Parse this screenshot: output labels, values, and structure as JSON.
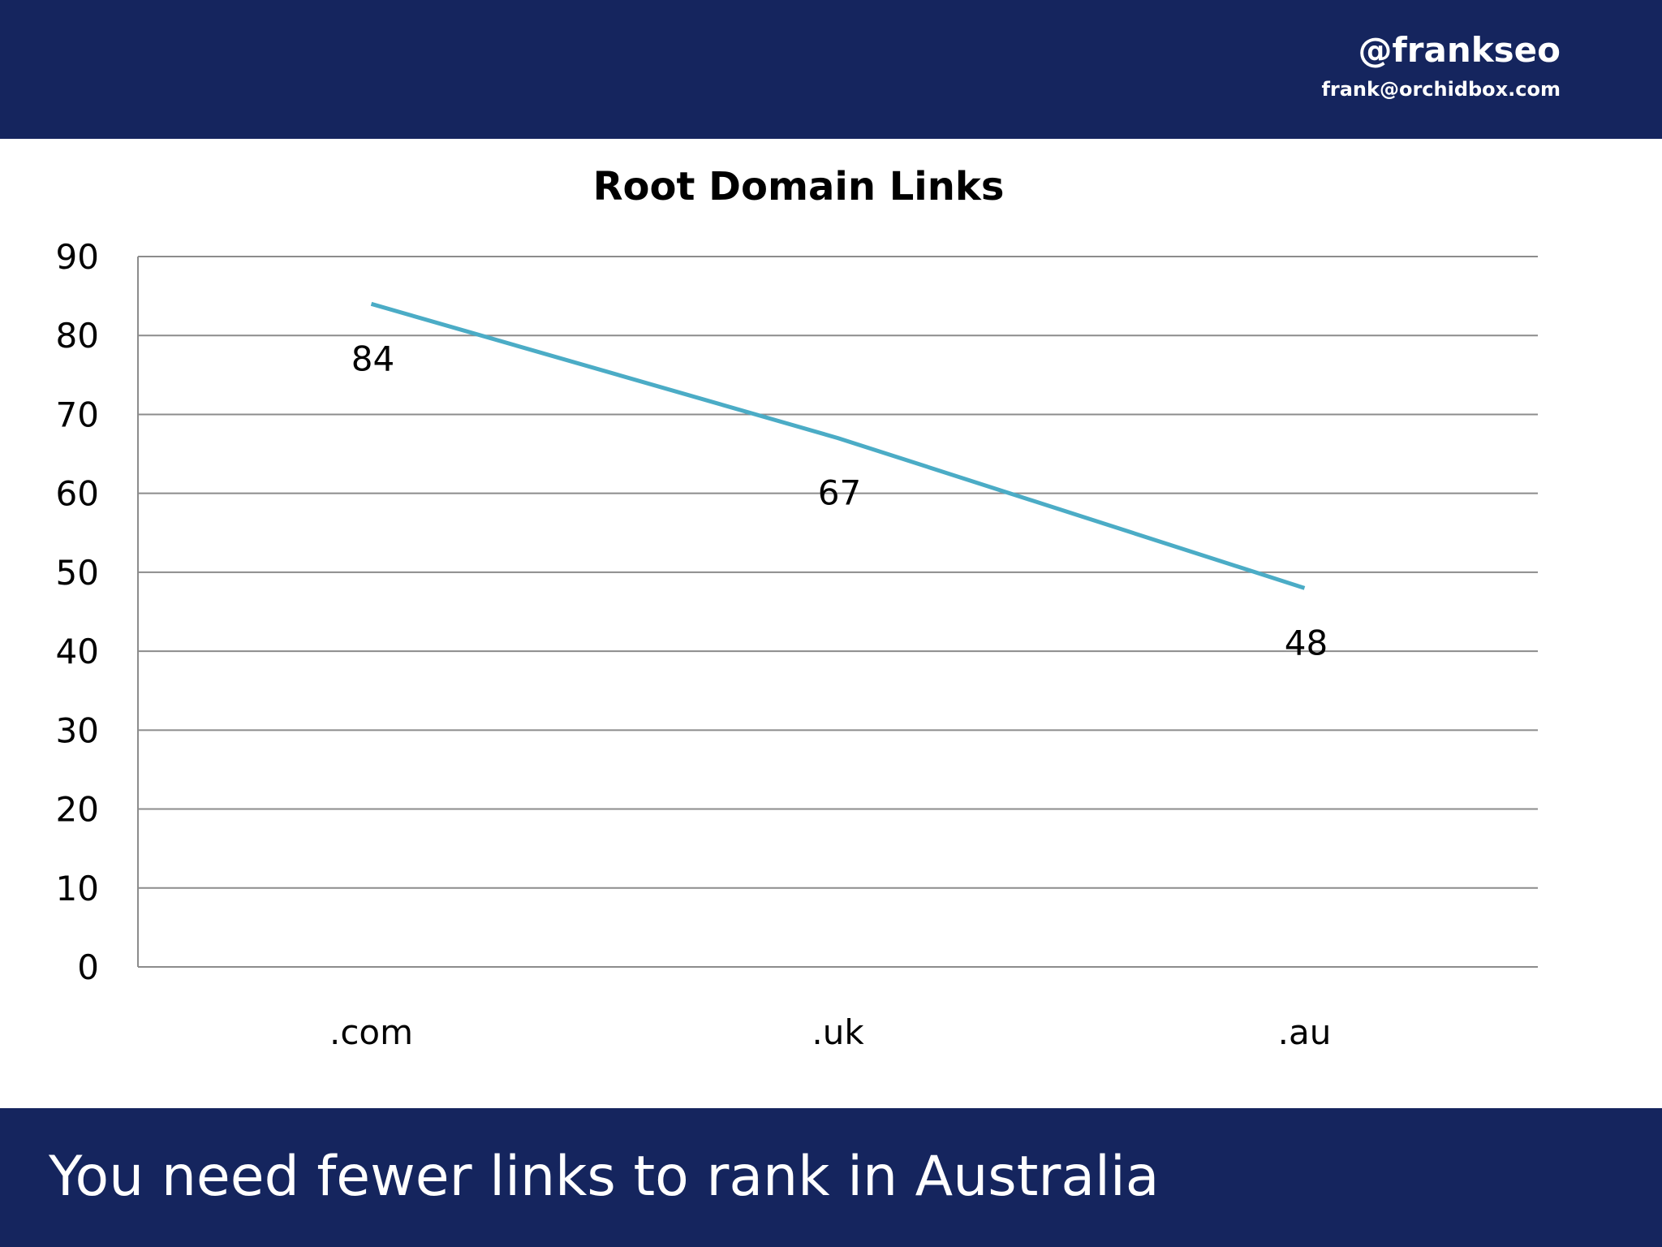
{
  "header": {
    "handle": "@frankseo",
    "email": "frank@orchidbox.com"
  },
  "footer": {
    "text": "You need fewer links to rank in Australia"
  },
  "colors": {
    "bar_background": "#15255e",
    "line": "#4bacc6",
    "grid": "#8c8c8c",
    "text": "#000000"
  },
  "chart_data": {
    "type": "line",
    "title": "Root Domain Links",
    "categories": [
      ".com",
      ".uk",
      ".au"
    ],
    "series": [
      {
        "values": [
          84,
          67,
          48
        ]
      }
    ],
    "data_labels": [
      "84",
      "67",
      "48"
    ],
    "ylim": [
      0,
      90
    ],
    "yticks": [
      0,
      10,
      20,
      30,
      40,
      50,
      60,
      70,
      80,
      90
    ],
    "ytick_labels": [
      "0",
      "10",
      "20",
      "30",
      "40",
      "50",
      "60",
      "70",
      "80",
      "90"
    ],
    "grid": true,
    "legend": "none"
  }
}
